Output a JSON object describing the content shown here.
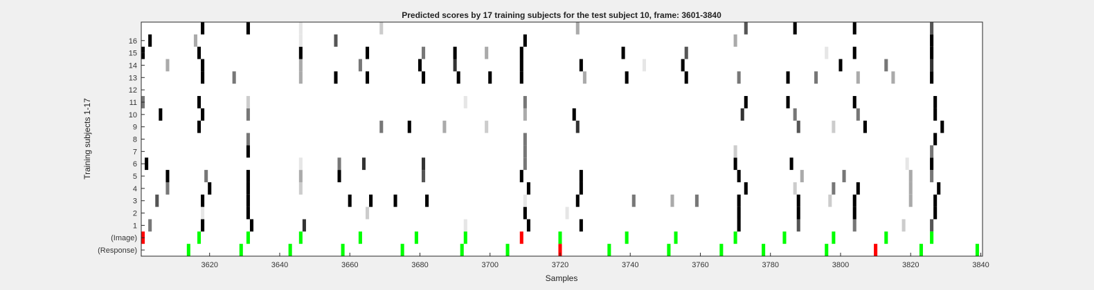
{
  "chart_data": {
    "type": "heatmap",
    "title": "Predicted scores by 17 training subjects for the test subject 10, frame: 3601-3840",
    "xlabel": "Samples",
    "ylabel": "Training subjects 1-17",
    "xlim": [
      3601,
      3840
    ],
    "x_ticks": [
      3620,
      3640,
      3660,
      3680,
      3700,
      3720,
      3740,
      3760,
      3780,
      3800,
      3820,
      3840
    ],
    "y_rows": [
      "(Response)",
      "(Image)",
      "1",
      "2",
      "3",
      "4",
      "5",
      "6",
      "7",
      "8",
      "9",
      "10",
      "11",
      "12",
      "13",
      "14",
      "15",
      "16",
      ""
    ],
    "y_tick_labels": [
      "(Response)",
      "(Image)",
      "1",
      "2",
      "3",
      "4",
      "5",
      "6",
      "7",
      "8",
      "9",
      "10",
      "11",
      "12",
      "13",
      "14",
      "15",
      "16"
    ],
    "grid": false,
    "colors": {
      "black": "#000000",
      "dark": "#333333",
      "mid": "#555555",
      "gray": "#777777",
      "light": "#aaaaaa",
      "pale": "#cccccc",
      "faint": "#e6e6e6",
      "green": "#00ff00",
      "red": "#ff0000"
    },
    "events": [
      {
        "row": 0,
        "x": [
          3614,
          3629,
          3643,
          3658,
          3675,
          3692,
          3705,
          3734,
          3751,
          3766,
          3778,
          3796,
          3823,
          3839
        ],
        "color": "green"
      },
      {
        "row": 0,
        "x": [
          3720,
          3810
        ],
        "color": "red"
      },
      {
        "row": 1,
        "x": [
          3617,
          3631,
          3646,
          3663,
          3679,
          3693,
          3720,
          3739,
          3753,
          3770,
          3784,
          3798,
          3813,
          3826
        ],
        "color": "green"
      },
      {
        "row": 1,
        "x": [
          3601,
          3709
        ],
        "color": "red"
      }
    ],
    "cells": [
      {
        "row": 2,
        "x": 3603,
        "c": "gray"
      },
      {
        "row": 2,
        "x": 3618,
        "c": "black"
      },
      {
        "row": 2,
        "x": 3632,
        "c": "black"
      },
      {
        "row": 2,
        "x": 3647,
        "c": "dark"
      },
      {
        "row": 2,
        "x": 3693,
        "c": "faint"
      },
      {
        "row": 2,
        "x": 3711,
        "c": "black"
      },
      {
        "row": 2,
        "x": 3726,
        "c": "black"
      },
      {
        "row": 2,
        "x": 3771,
        "c": "black"
      },
      {
        "row": 2,
        "x": 3788,
        "c": "mid"
      },
      {
        "row": 2,
        "x": 3804,
        "c": "gray"
      },
      {
        "row": 2,
        "x": 3818,
        "c": "pale"
      },
      {
        "row": 2,
        "x": 3826,
        "c": "mid"
      },
      {
        "row": 3,
        "x": 3618,
        "c": "faint"
      },
      {
        "row": 3,
        "x": 3631,
        "c": "black"
      },
      {
        "row": 3,
        "x": 3665,
        "c": "pale"
      },
      {
        "row": 3,
        "x": 3710,
        "c": "black"
      },
      {
        "row": 3,
        "x": 3722,
        "c": "faint"
      },
      {
        "row": 3,
        "x": 3771,
        "c": "black"
      },
      {
        "row": 3,
        "x": 3788,
        "c": "black"
      },
      {
        "row": 3,
        "x": 3804,
        "c": "black"
      },
      {
        "row": 3,
        "x": 3827,
        "c": "black"
      },
      {
        "row": 4,
        "x": 3605,
        "c": "mid"
      },
      {
        "row": 4,
        "x": 3618,
        "c": "black"
      },
      {
        "row": 4,
        "x": 3631,
        "c": "black"
      },
      {
        "row": 4,
        "x": 3660,
        "c": "black"
      },
      {
        "row": 4,
        "x": 3666,
        "c": "black"
      },
      {
        "row": 4,
        "x": 3673,
        "c": "black"
      },
      {
        "row": 4,
        "x": 3682,
        "c": "black"
      },
      {
        "row": 4,
        "x": 3710,
        "c": "faint"
      },
      {
        "row": 4,
        "x": 3725,
        "c": "black"
      },
      {
        "row": 4,
        "x": 3741,
        "c": "gray"
      },
      {
        "row": 4,
        "x": 3752,
        "c": "light"
      },
      {
        "row": 4,
        "x": 3759,
        "c": "gray"
      },
      {
        "row": 4,
        "x": 3771,
        "c": "black"
      },
      {
        "row": 4,
        "x": 3788,
        "c": "black"
      },
      {
        "row": 4,
        "x": 3797,
        "c": "pale"
      },
      {
        "row": 4,
        "x": 3804,
        "c": "black"
      },
      {
        "row": 4,
        "x": 3820,
        "c": "light"
      },
      {
        "row": 4,
        "x": 3827,
        "c": "black"
      },
      {
        "row": 5,
        "x": 3608,
        "c": "gray"
      },
      {
        "row": 5,
        "x": 3620,
        "c": "black"
      },
      {
        "row": 5,
        "x": 3631,
        "c": "black"
      },
      {
        "row": 5,
        "x": 3646,
        "c": "pale"
      },
      {
        "row": 5,
        "x": 3711,
        "c": "black"
      },
      {
        "row": 5,
        "x": 3726,
        "c": "black"
      },
      {
        "row": 5,
        "x": 3773,
        "c": "black"
      },
      {
        "row": 5,
        "x": 3787,
        "c": "pale"
      },
      {
        "row": 5,
        "x": 3798,
        "c": "gray"
      },
      {
        "row": 5,
        "x": 3805,
        "c": "black"
      },
      {
        "row": 5,
        "x": 3820,
        "c": "light"
      },
      {
        "row": 5,
        "x": 3828,
        "c": "black"
      },
      {
        "row": 6,
        "x": 3608,
        "c": "black"
      },
      {
        "row": 6,
        "x": 3619,
        "c": "gray"
      },
      {
        "row": 6,
        "x": 3631,
        "c": "black"
      },
      {
        "row": 6,
        "x": 3646,
        "c": "light"
      },
      {
        "row": 6,
        "x": 3657,
        "c": "black"
      },
      {
        "row": 6,
        "x": 3681,
        "c": "mid"
      },
      {
        "row": 6,
        "x": 3709,
        "c": "black"
      },
      {
        "row": 6,
        "x": 3726,
        "c": "black"
      },
      {
        "row": 6,
        "x": 3771,
        "c": "black"
      },
      {
        "row": 6,
        "x": 3789,
        "c": "light"
      },
      {
        "row": 6,
        "x": 3801,
        "c": "gray"
      },
      {
        "row": 6,
        "x": 3820,
        "c": "light"
      },
      {
        "row": 6,
        "x": 3826,
        "c": "gray"
      },
      {
        "row": 7,
        "x": 3602,
        "c": "black"
      },
      {
        "row": 7,
        "x": 3646,
        "c": "faint"
      },
      {
        "row": 7,
        "x": 3657,
        "c": "gray"
      },
      {
        "row": 7,
        "x": 3664,
        "c": "dark"
      },
      {
        "row": 7,
        "x": 3681,
        "c": "dark"
      },
      {
        "row": 7,
        "x": 3710,
        "c": "gray"
      },
      {
        "row": 7,
        "x": 3770,
        "c": "black"
      },
      {
        "row": 7,
        "x": 3786,
        "c": "black"
      },
      {
        "row": 7,
        "x": 3819,
        "c": "faint"
      },
      {
        "row": 7,
        "x": 3826,
        "c": "black"
      },
      {
        "row": 8,
        "x": 3631,
        "c": "black"
      },
      {
        "row": 8,
        "x": 3710,
        "c": "gray"
      },
      {
        "row": 8,
        "x": 3770,
        "c": "pale"
      },
      {
        "row": 8,
        "x": 3826,
        "c": "gray"
      },
      {
        "row": 9,
        "x": 3631,
        "c": "gray"
      },
      {
        "row": 9,
        "x": 3710,
        "c": "gray"
      },
      {
        "row": 9,
        "x": 3827,
        "c": "black"
      },
      {
        "row": 10,
        "x": 3617,
        "c": "black"
      },
      {
        "row": 10,
        "x": 3669,
        "c": "gray"
      },
      {
        "row": 10,
        "x": 3677,
        "c": "black"
      },
      {
        "row": 10,
        "x": 3687,
        "c": "light"
      },
      {
        "row": 10,
        "x": 3699,
        "c": "pale"
      },
      {
        "row": 10,
        "x": 3725,
        "c": "dark"
      },
      {
        "row": 10,
        "x": 3788,
        "c": "mid"
      },
      {
        "row": 10,
        "x": 3798,
        "c": "pale"
      },
      {
        "row": 10,
        "x": 3807,
        "c": "black"
      },
      {
        "row": 10,
        "x": 3829,
        "c": "black"
      },
      {
        "row": 11,
        "x": 3606,
        "c": "black"
      },
      {
        "row": 11,
        "x": 3618,
        "c": "black"
      },
      {
        "row": 11,
        "x": 3631,
        "c": "gray"
      },
      {
        "row": 11,
        "x": 3710,
        "c": "light"
      },
      {
        "row": 11,
        "x": 3724,
        "c": "black"
      },
      {
        "row": 11,
        "x": 3772,
        "c": "dark"
      },
      {
        "row": 11,
        "x": 3787,
        "c": "gray"
      },
      {
        "row": 11,
        "x": 3805,
        "c": "gray"
      },
      {
        "row": 11,
        "x": 3827,
        "c": "black"
      },
      {
        "row": 12,
        "x": 3601,
        "c": "gray"
      },
      {
        "row": 12,
        "x": 3617,
        "c": "black"
      },
      {
        "row": 12,
        "x": 3631,
        "c": "pale"
      },
      {
        "row": 12,
        "x": 3693,
        "c": "faint"
      },
      {
        "row": 12,
        "x": 3710,
        "c": "gray"
      },
      {
        "row": 12,
        "x": 3773,
        "c": "black"
      },
      {
        "row": 12,
        "x": 3785,
        "c": "black"
      },
      {
        "row": 12,
        "x": 3804,
        "c": "black"
      },
      {
        "row": 12,
        "x": 3827,
        "c": "black"
      },
      {
        "row": 14,
        "x": 3618,
        "c": "black"
      },
      {
        "row": 14,
        "x": 3627,
        "c": "gray"
      },
      {
        "row": 14,
        "x": 3646,
        "c": "light"
      },
      {
        "row": 14,
        "x": 3656,
        "c": "black"
      },
      {
        "row": 14,
        "x": 3665,
        "c": "black"
      },
      {
        "row": 14,
        "x": 3681,
        "c": "black"
      },
      {
        "row": 14,
        "x": 3691,
        "c": "black"
      },
      {
        "row": 14,
        "x": 3700,
        "c": "black"
      },
      {
        "row": 14,
        "x": 3709,
        "c": "black"
      },
      {
        "row": 14,
        "x": 3727,
        "c": "light"
      },
      {
        "row": 14,
        "x": 3739,
        "c": "black"
      },
      {
        "row": 14,
        "x": 3756,
        "c": "black"
      },
      {
        "row": 14,
        "x": 3771,
        "c": "gray"
      },
      {
        "row": 14,
        "x": 3785,
        "c": "black"
      },
      {
        "row": 14,
        "x": 3793,
        "c": "gray"
      },
      {
        "row": 14,
        "x": 3805,
        "c": "light"
      },
      {
        "row": 14,
        "x": 3815,
        "c": "light"
      },
      {
        "row": 14,
        "x": 3826,
        "c": "black"
      },
      {
        "row": 15,
        "x": 3608,
        "c": "light"
      },
      {
        "row": 15,
        "x": 3618,
        "c": "black"
      },
      {
        "row": 15,
        "x": 3646,
        "c": "light"
      },
      {
        "row": 15,
        "x": 3663,
        "c": "gray"
      },
      {
        "row": 15,
        "x": 3680,
        "c": "black"
      },
      {
        "row": 15,
        "x": 3690,
        "c": "dark"
      },
      {
        "row": 15,
        "x": 3709,
        "c": "black"
      },
      {
        "row": 15,
        "x": 3726,
        "c": "black"
      },
      {
        "row": 15,
        "x": 3744,
        "c": "faint"
      },
      {
        "row": 15,
        "x": 3755,
        "c": "black"
      },
      {
        "row": 15,
        "x": 3800,
        "c": "black"
      },
      {
        "row": 15,
        "x": 3813,
        "c": "gray"
      },
      {
        "row": 15,
        "x": 3826,
        "c": "dark"
      },
      {
        "row": 16,
        "x": 3601,
        "c": "black"
      },
      {
        "row": 16,
        "x": 3617,
        "c": "black"
      },
      {
        "row": 16,
        "x": 3646,
        "c": "black"
      },
      {
        "row": 16,
        "x": 3665,
        "c": "black"
      },
      {
        "row": 16,
        "x": 3681,
        "c": "gray"
      },
      {
        "row": 16,
        "x": 3690,
        "c": "black"
      },
      {
        "row": 16,
        "x": 3699,
        "c": "light"
      },
      {
        "row": 16,
        "x": 3709,
        "c": "black"
      },
      {
        "row": 16,
        "x": 3738,
        "c": "black"
      },
      {
        "row": 16,
        "x": 3756,
        "c": "mid"
      },
      {
        "row": 16,
        "x": 3796,
        "c": "faint"
      },
      {
        "row": 16,
        "x": 3804,
        "c": "black"
      },
      {
        "row": 16,
        "x": 3826,
        "c": "black"
      },
      {
        "row": 17,
        "x": 3603,
        "c": "black"
      },
      {
        "row": 17,
        "x": 3616,
        "c": "light"
      },
      {
        "row": 17,
        "x": 3646,
        "c": "faint"
      },
      {
        "row": 17,
        "x": 3656,
        "c": "mid"
      },
      {
        "row": 17,
        "x": 3710,
        "c": "black"
      },
      {
        "row": 17,
        "x": 3770,
        "c": "light"
      },
      {
        "row": 17,
        "x": 3826,
        "c": "black"
      },
      {
        "row": 18,
        "x": 3618,
        "c": "black"
      },
      {
        "row": 18,
        "x": 3631,
        "c": "black"
      },
      {
        "row": 18,
        "x": 3646,
        "c": "faint"
      },
      {
        "row": 18,
        "x": 3669,
        "c": "pale"
      },
      {
        "row": 18,
        "x": 3725,
        "c": "light"
      },
      {
        "row": 18,
        "x": 3773,
        "c": "mid"
      },
      {
        "row": 18,
        "x": 3787,
        "c": "black"
      },
      {
        "row": 18,
        "x": 3804,
        "c": "black"
      },
      {
        "row": 18,
        "x": 3826,
        "c": "mid"
      }
    ]
  }
}
